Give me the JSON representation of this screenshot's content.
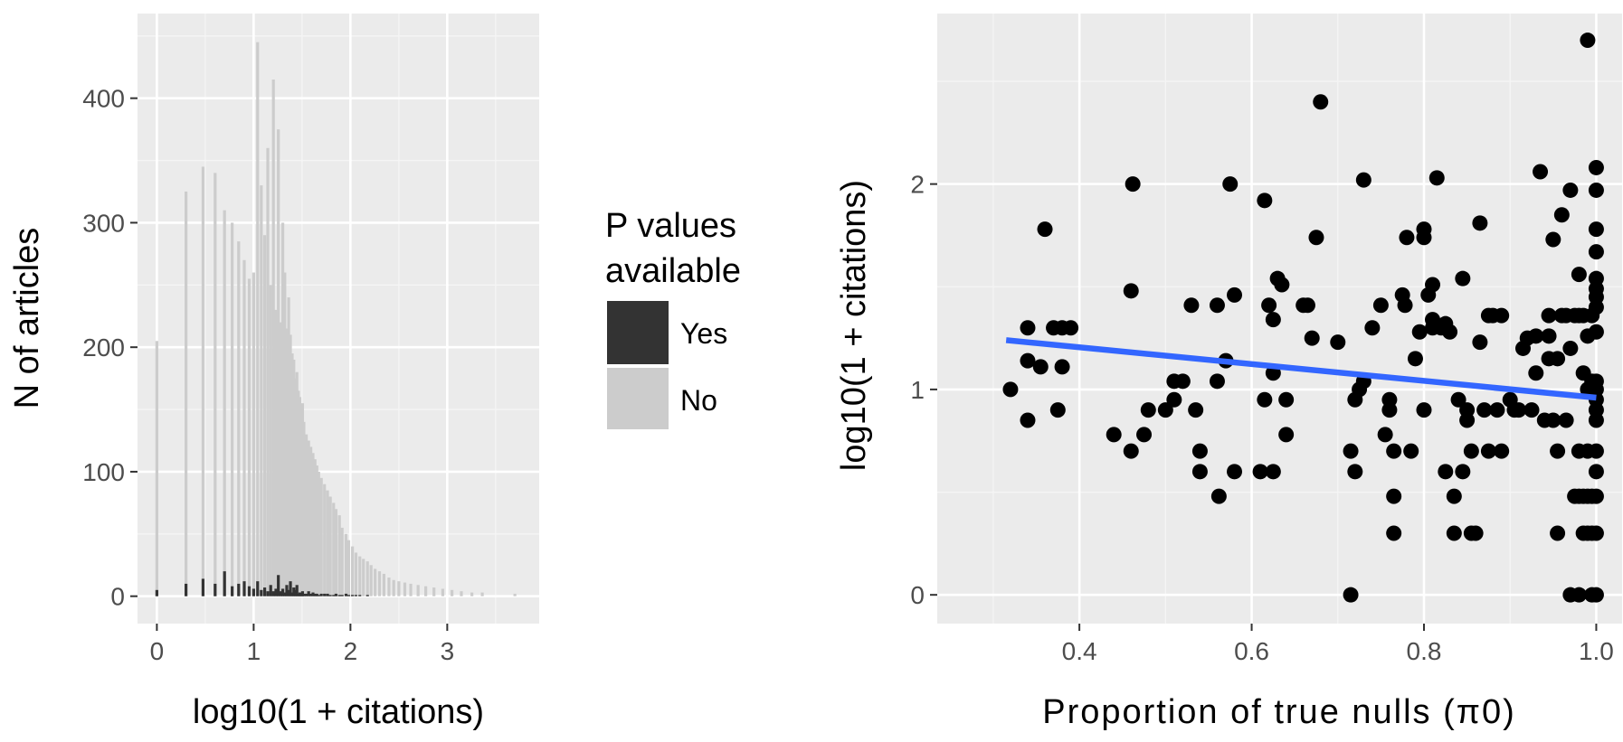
{
  "chart_data": [
    {
      "type": "bar",
      "xlabel": "log10(1 + citations)",
      "ylabel": "N of articles",
      "xlim": [
        -0.2,
        3.95
      ],
      "ylim": [
        -22,
        468
      ],
      "x_ticks": [
        0,
        1,
        2,
        3
      ],
      "y_ticks": [
        0,
        100,
        200,
        300,
        400
      ],
      "grid": true,
      "legend": {
        "title_lines": [
          "P values",
          "available"
        ],
        "position": "right",
        "entries": [
          {
            "label": "Yes",
            "color": "#333333"
          },
          {
            "label": "No",
            "color": "#cccccc"
          }
        ]
      },
      "series": [
        {
          "name": "No",
          "color": "#cccccc",
          "x": [
            0.0,
            0.301,
            0.477,
            0.602,
            0.699,
            0.778,
            0.845,
            0.903,
            0.954,
            1.0,
            1.041,
            1.079,
            1.114,
            1.146,
            1.176,
            1.204,
            1.23,
            1.255,
            1.279,
            1.301,
            1.322,
            1.342,
            1.362,
            1.38,
            1.398,
            1.415,
            1.431,
            1.447,
            1.462,
            1.477,
            1.491,
            1.505,
            1.519,
            1.544,
            1.568,
            1.591,
            1.613,
            1.634,
            1.653,
            1.672,
            1.699,
            1.732,
            1.763,
            1.792,
            1.826,
            1.851,
            1.886,
            1.914,
            1.954,
            1.982,
            2.021,
            2.057,
            2.097,
            2.134,
            2.176,
            2.213,
            2.255,
            2.3,
            2.346,
            2.398,
            2.447,
            2.5,
            2.562,
            2.623,
            2.699,
            2.778,
            2.863,
            2.954,
            3.049,
            3.146,
            3.255,
            3.362,
            3.699
          ],
          "values": [
            205,
            325,
            345,
            340,
            310,
            300,
            285,
            270,
            255,
            260,
            445,
            330,
            290,
            360,
            250,
            415,
            230,
            375,
            220,
            300,
            260,
            215,
            240,
            210,
            195,
            190,
            175,
            180,
            165,
            160,
            150,
            155,
            140,
            130,
            125,
            120,
            115,
            110,
            105,
            100,
            95,
            90,
            85,
            80,
            75,
            70,
            65,
            55,
            50,
            45,
            40,
            35,
            32,
            30,
            28,
            25,
            22,
            20,
            18,
            15,
            13,
            12,
            11,
            10,
            9,
            8,
            7,
            6,
            5,
            4,
            3,
            3,
            2
          ]
        },
        {
          "name": "Yes",
          "color": "#333333",
          "x": [
            0.0,
            0.301,
            0.477,
            0.602,
            0.699,
            0.778,
            0.845,
            0.903,
            0.954,
            1.0,
            1.041,
            1.079,
            1.114,
            1.146,
            1.176,
            1.204,
            1.23,
            1.255,
            1.279,
            1.301,
            1.322,
            1.342,
            1.362,
            1.38,
            1.398,
            1.415,
            1.431,
            1.447,
            1.462,
            1.477,
            1.491,
            1.505,
            1.519,
            1.544,
            1.568,
            1.591,
            1.613,
            1.634,
            1.653,
            1.672,
            1.699,
            1.732,
            1.763,
            1.792,
            1.826,
            1.851,
            1.886,
            1.914,
            1.954,
            1.982,
            2.021,
            2.057,
            2.097,
            2.134,
            2.176,
            2.213,
            2.255,
            2.3,
            2.346,
            2.398,
            2.447,
            2.5,
            2.562,
            2.623,
            2.699,
            2.778,
            2.863,
            2.954,
            3.049,
            3.146,
            3.255,
            3.362,
            3.699
          ],
          "values": [
            5,
            10,
            14,
            10,
            20,
            8,
            10,
            12,
            8,
            6,
            12,
            5,
            7,
            4,
            9,
            4,
            6,
            17,
            4,
            6,
            3,
            9,
            5,
            12,
            3,
            7,
            5,
            9,
            2,
            3,
            2,
            4,
            2,
            2,
            4,
            2,
            3,
            2,
            2,
            1,
            2,
            2,
            2,
            1,
            1,
            2,
            1,
            1,
            2,
            1,
            1,
            1,
            1,
            0,
            1,
            0,
            0,
            0,
            0,
            0,
            0,
            0,
            0,
            0,
            0,
            0,
            0,
            0,
            0,
            0,
            0,
            0,
            0
          ]
        }
      ]
    },
    {
      "type": "scatter",
      "xlabel": "Proportion of true nulls (π0)",
      "ylabel": "log10(1 + citations)",
      "xlim": [
        0.235,
        1.03
      ],
      "ylim": [
        -0.14,
        2.83
      ],
      "x_ticks": [
        0.4,
        0.6,
        0.8,
        1.0
      ],
      "x_tick_labels": [
        "0.4",
        "0.6",
        "0.8",
        "1.0"
      ],
      "y_ticks": [
        0,
        1,
        2
      ],
      "grid": true,
      "trend_line": {
        "x": [
          0.315,
          1.0
        ],
        "y": [
          1.24,
          0.96
        ],
        "color": "#3366ff"
      },
      "point_color": "#000000",
      "points": [
        [
          0.32,
          1.0
        ],
        [
          0.34,
          1.3
        ],
        [
          0.34,
          0.85
        ],
        [
          0.34,
          1.14
        ],
        [
          0.355,
          1.11
        ],
        [
          0.36,
          1.78
        ],
        [
          0.37,
          1.3
        ],
        [
          0.375,
          0.9
        ],
        [
          0.38,
          1.11
        ],
        [
          0.38,
          1.3
        ],
        [
          0.39,
          1.3
        ],
        [
          0.44,
          0.78
        ],
        [
          0.46,
          0.7
        ],
        [
          0.46,
          1.48
        ],
        [
          0.462,
          2.0
        ],
        [
          0.475,
          0.78
        ],
        [
          0.48,
          0.9
        ],
        [
          0.5,
          0.9
        ],
        [
          0.51,
          0.95
        ],
        [
          0.51,
          1.04
        ],
        [
          0.52,
          1.04
        ],
        [
          0.53,
          1.41
        ],
        [
          0.535,
          0.9
        ],
        [
          0.54,
          0.6
        ],
        [
          0.54,
          0.7
        ],
        [
          0.56,
          1.41
        ],
        [
          0.56,
          1.04
        ],
        [
          0.562,
          0.48
        ],
        [
          0.57,
          1.14
        ],
        [
          0.575,
          2.0
        ],
        [
          0.58,
          0.6
        ],
        [
          0.58,
          1.46
        ],
        [
          0.61,
          0.6
        ],
        [
          0.615,
          0.95
        ],
        [
          0.615,
          1.92
        ],
        [
          0.62,
          1.41
        ],
        [
          0.625,
          1.34
        ],
        [
          0.625,
          1.08
        ],
        [
          0.625,
          0.6
        ],
        [
          0.63,
          1.54
        ],
        [
          0.635,
          1.51
        ],
        [
          0.64,
          0.78
        ],
        [
          0.64,
          0.95
        ],
        [
          0.66,
          1.41
        ],
        [
          0.665,
          1.41
        ],
        [
          0.67,
          1.25
        ],
        [
          0.675,
          1.74
        ],
        [
          0.68,
          2.4
        ],
        [
          0.7,
          1.23
        ],
        [
          0.715,
          0.0
        ],
        [
          0.715,
          0.7
        ],
        [
          0.72,
          0.95
        ],
        [
          0.72,
          0.6
        ],
        [
          0.725,
          1.0
        ],
        [
          0.73,
          1.04
        ],
        [
          0.73,
          2.02
        ],
        [
          0.74,
          1.3
        ],
        [
          0.75,
          1.41
        ],
        [
          0.755,
          0.78
        ],
        [
          0.76,
          0.95
        ],
        [
          0.76,
          0.9
        ],
        [
          0.765,
          0.48
        ],
        [
          0.765,
          0.3
        ],
        [
          0.765,
          0.7
        ],
        [
          0.775,
          1.46
        ],
        [
          0.778,
          1.41
        ],
        [
          0.78,
          1.74
        ],
        [
          0.785,
          0.7
        ],
        [
          0.79,
          1.15
        ],
        [
          0.795,
          1.28
        ],
        [
          0.8,
          1.78
        ],
        [
          0.8,
          1.74
        ],
        [
          0.8,
          0.9
        ],
        [
          0.805,
          1.46
        ],
        [
          0.81,
          1.51
        ],
        [
          0.81,
          1.34
        ],
        [
          0.81,
          1.3
        ],
        [
          0.815,
          2.03
        ],
        [
          0.82,
          1.3
        ],
        [
          0.825,
          1.32
        ],
        [
          0.825,
          0.6
        ],
        [
          0.83,
          1.28
        ],
        [
          0.835,
          0.48
        ],
        [
          0.835,
          0.3
        ],
        [
          0.84,
          0.95
        ],
        [
          0.845,
          1.54
        ],
        [
          0.845,
          0.6
        ],
        [
          0.85,
          0.9
        ],
        [
          0.85,
          0.85
        ],
        [
          0.855,
          0.7
        ],
        [
          0.855,
          0.3
        ],
        [
          0.86,
          0.3
        ],
        [
          0.865,
          1.23
        ],
        [
          0.865,
          1.81
        ],
        [
          0.87,
          0.9
        ],
        [
          0.875,
          1.36
        ],
        [
          0.875,
          0.7
        ],
        [
          0.88,
          1.36
        ],
        [
          0.885,
          0.9
        ],
        [
          0.89,
          1.36
        ],
        [
          0.89,
          0.7
        ],
        [
          0.9,
          0.95
        ],
        [
          0.905,
          0.9
        ],
        [
          0.91,
          0.9
        ],
        [
          0.915,
          1.2
        ],
        [
          0.92,
          1.25
        ],
        [
          0.925,
          0.9
        ],
        [
          0.93,
          1.26
        ],
        [
          0.93,
          1.08
        ],
        [
          0.935,
          2.06
        ],
        [
          0.94,
          0.85
        ],
        [
          0.945,
          1.36
        ],
        [
          0.945,
          1.26
        ],
        [
          0.945,
          1.15
        ],
        [
          0.95,
          1.73
        ],
        [
          0.95,
          0.85
        ],
        [
          0.955,
          0.3
        ],
        [
          0.955,
          1.15
        ],
        [
          0.955,
          0.7
        ],
        [
          0.96,
          1.85
        ],
        [
          0.96,
          1.36
        ],
        [
          0.965,
          1.36
        ],
        [
          0.965,
          0.85
        ],
        [
          0.97,
          1.97
        ],
        [
          0.97,
          1.2
        ],
        [
          0.97,
          0.0
        ],
        [
          0.975,
          1.36
        ],
        [
          0.975,
          0.48
        ],
        [
          0.98,
          1.56
        ],
        [
          0.98,
          1.36
        ],
        [
          0.98,
          0.7
        ],
        [
          0.98,
          0.0
        ],
        [
          0.98,
          0.48
        ],
        [
          0.985,
          1.36
        ],
        [
          0.985,
          1.08
        ],
        [
          0.985,
          0.48
        ],
        [
          0.985,
          0.3
        ],
        [
          0.99,
          1.26
        ],
        [
          0.99,
          2.7
        ],
        [
          0.99,
          1.0
        ],
        [
          0.99,
          0.7
        ],
        [
          0.99,
          0.48
        ],
        [
          0.99,
          0.3
        ],
        [
          0.995,
          1.36
        ],
        [
          0.995,
          1.04
        ],
        [
          0.995,
          0.48
        ],
        [
          0.995,
          0.3
        ],
        [
          0.995,
          0.0
        ],
        [
          1.0,
          2.08
        ],
        [
          1.0,
          1.97
        ],
        [
          1.0,
          1.78
        ],
        [
          1.0,
          1.67
        ],
        [
          1.0,
          1.54
        ],
        [
          1.0,
          1.49
        ],
        [
          1.0,
          1.45
        ],
        [
          1.0,
          1.4
        ],
        [
          1.0,
          1.28
        ],
        [
          1.0,
          1.04
        ],
        [
          1.0,
          1.0
        ],
        [
          1.0,
          0.95
        ],
        [
          1.0,
          0.9
        ],
        [
          1.0,
          0.85
        ],
        [
          1.0,
          0.7
        ],
        [
          1.0,
          0.6
        ],
        [
          1.0,
          0.48
        ],
        [
          1.0,
          0.3
        ],
        [
          1.0,
          0.0
        ]
      ]
    }
  ]
}
